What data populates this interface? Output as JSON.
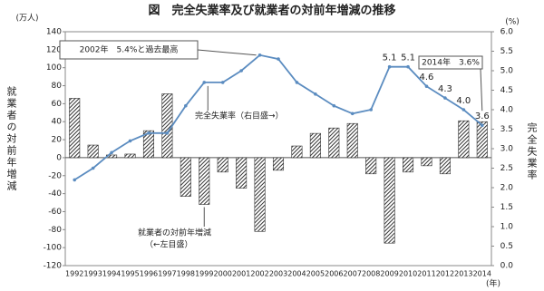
{
  "chart_data": {
    "type": "bar-line",
    "title": "図　完全失業率及び就業者の対前年増減の推移",
    "y_unit": "(万人)",
    "y2_unit": "(%)",
    "x_unit": "(年)",
    "ylabel": "就業者の対前年増減",
    "y2label": "完全失業率",
    "categories": [
      "1992",
      "1993",
      "1994",
      "1995",
      "1996",
      "1997",
      "1998",
      "1999",
      "2000",
      "2001",
      "2002",
      "2003",
      "2004",
      "2005",
      "2006",
      "2007",
      "2008",
      "2009",
      "2010",
      "2011",
      "2012",
      "2013",
      "2014"
    ],
    "series": [
      {
        "name": "就業者の対前年増減",
        "type": "bar",
        "color": "#333333",
        "values": [
          66,
          14,
          3,
          4,
          30,
          71,
          -43,
          -52,
          -16,
          -34,
          -82,
          -14,
          13,
          27,
          33,
          38,
          -18,
          -95,
          -16,
          -9,
          -18,
          41,
          40
        ]
      },
      {
        "name": "完全失業率",
        "type": "line",
        "axis": "y2",
        "color": "#5b8cc0",
        "values": [
          2.2,
          2.5,
          2.9,
          3.2,
          3.4,
          3.4,
          4.1,
          4.7,
          4.7,
          5.0,
          5.4,
          5.3,
          4.7,
          4.4,
          4.1,
          3.9,
          4.0,
          5.1,
          5.1,
          4.6,
          4.3,
          4.0,
          3.6
        ],
        "value_labels": [
          null,
          null,
          null,
          null,
          null,
          null,
          null,
          null,
          null,
          null,
          null,
          null,
          null,
          null,
          null,
          null,
          null,
          "5.1",
          "5.1",
          "4.6",
          "4.3",
          "4.0",
          "3.6"
        ]
      }
    ],
    "ylim": [
      -120,
      140
    ],
    "yticks": [
      -120,
      -100,
      -80,
      -60,
      -40,
      -20,
      0,
      20,
      40,
      60,
      80,
      100,
      120,
      140
    ],
    "y2lim": [
      0,
      6
    ],
    "y2ticks": [
      {
        "value": 0,
        "label": "0.0"
      },
      0.5,
      {
        "value": 1,
        "label": "1.0"
      },
      1.5,
      {
        "value": 2,
        "label": "2.0"
      },
      2.5,
      {
        "value": 3,
        "label": "3.0"
      },
      3.5,
      {
        "value": 4,
        "label": "4.0"
      },
      4.5,
      {
        "value": 5,
        "label": "5.0"
      },
      5.5,
      {
        "value": 6,
        "label": "6.0"
      }
    ],
    "annotations": [
      "2002年　5.4%と過去最高",
      "完全失業率（右目盛→）",
      "就業者の対前年増減",
      "（←左目盛）",
      "2014年　3.6%"
    ]
  }
}
